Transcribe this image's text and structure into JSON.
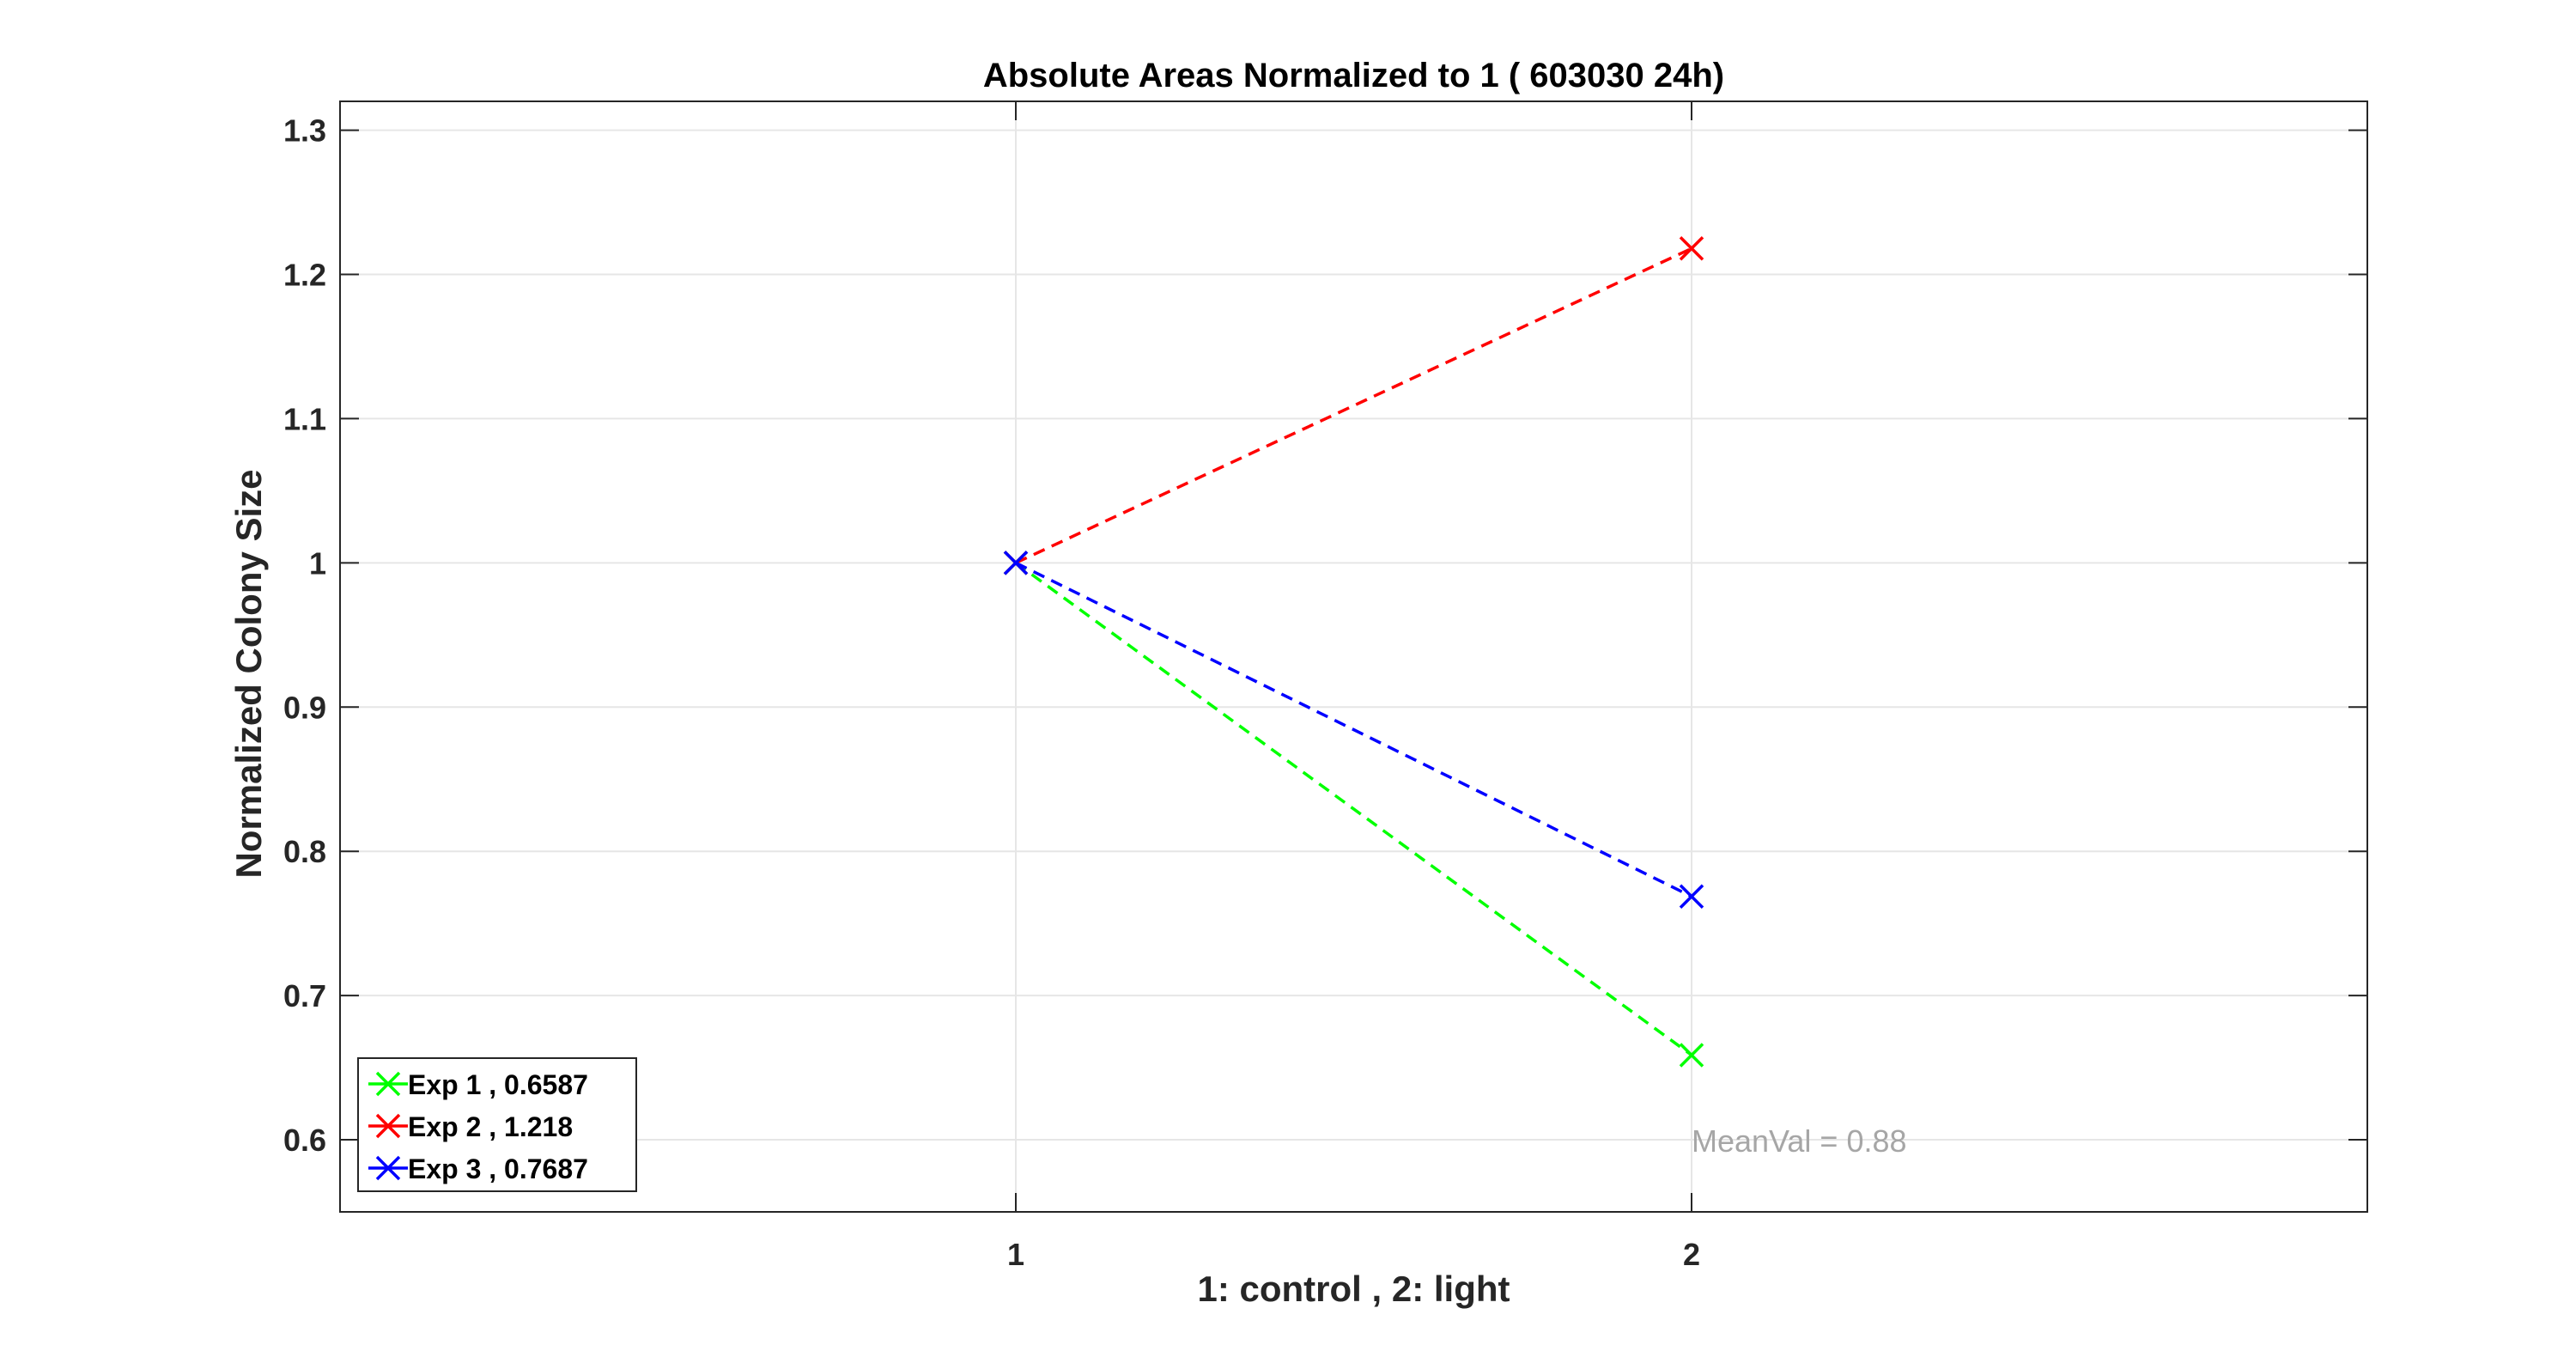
{
  "chart_data": {
    "type": "line",
    "title": "Absolute Areas Normalized to 1 ( 603030 24h)",
    "xlabel": "1: control ,  2: light",
    "ylabel": "Normalized Colony Size",
    "xlim": [
      0,
      3
    ],
    "ylim": [
      0.55,
      1.32
    ],
    "xticks": [
      1,
      2
    ],
    "xtick_labels": [
      "1",
      "2"
    ],
    "yticks": [
      0.6,
      0.7,
      0.8,
      0.9,
      1.0,
      1.1,
      1.2,
      1.3
    ],
    "ytick_labels": [
      "0.6",
      "0.7",
      "0.8",
      "0.9",
      "1",
      "1.1",
      "1.2",
      "1.3"
    ],
    "grid": true,
    "legend_position": "bottom-left",
    "x": [
      1,
      2
    ],
    "series": [
      {
        "name": "Exp 1 ,  0.6587",
        "values": [
          1,
          0.6587
        ],
        "color": "#00ff00",
        "line_style": "dashed",
        "marker": "x"
      },
      {
        "name": "Exp 2 ,  1.218",
        "values": [
          1,
          1.218
        ],
        "color": "#ff0000",
        "line_style": "dashed",
        "marker": "x"
      },
      {
        "name": "Exp 3 ,  0.7687",
        "values": [
          1,
          0.7687
        ],
        "color": "#0000ff",
        "line_style": "dashed",
        "marker": "x"
      }
    ],
    "annotations": [
      {
        "text": "MeanVal  = 0.88",
        "x": 2,
        "y": 0.6,
        "color": "#a6a6a6"
      }
    ]
  }
}
